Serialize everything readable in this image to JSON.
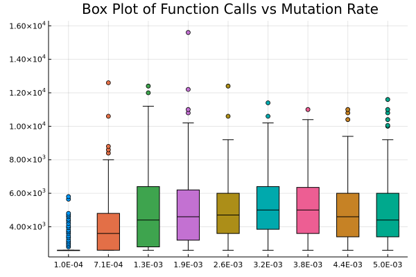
{
  "chart_data": {
    "type": "box",
    "title": "Box Plot of Function Calls vs Mutation Rate",
    "xlabel": "",
    "ylabel": "",
    "ylim": [
      2200,
      16300
    ],
    "grid": true,
    "legend": "none",
    "y_ticks": [
      {
        "value": 4000,
        "mantissa": "4.00",
        "exponent": "3"
      },
      {
        "value": 6000,
        "mantissa": "6.00",
        "exponent": "3"
      },
      {
        "value": 8000,
        "mantissa": "8.00",
        "exponent": "3"
      },
      {
        "value": 10000,
        "mantissa": "1.00",
        "exponent": "4"
      },
      {
        "value": 12000,
        "mantissa": "1.20",
        "exponent": "4"
      },
      {
        "value": 14000,
        "mantissa": "1.40",
        "exponent": "4"
      },
      {
        "value": 16000,
        "mantissa": "1.60",
        "exponent": "4"
      }
    ],
    "categories": [
      "1.0E-04",
      "7.1E-04",
      "1.3E-03",
      "1.9E-03",
      "2.6E-03",
      "3.2E-03",
      "3.8E-03",
      "4.4E-03",
      "5.0E-03"
    ],
    "boxes": [
      {
        "category": "1.0E-04",
        "color": "#009AFA",
        "whisker_low": 2600,
        "q1": 2600,
        "median": 2600,
        "q3": 2600,
        "whisker_high": 2600,
        "outliers": [
          2800,
          2900,
          3000,
          3100,
          3200,
          3350,
          3450,
          3600,
          3700,
          3800,
          3950,
          4050,
          4200,
          4350,
          4450,
          4600,
          4700,
          4800,
          5650,
          5800
        ]
      },
      {
        "category": "7.1E-04",
        "color": "#E36F47",
        "whisker_low": 2600,
        "q1": 2600,
        "median": 3600,
        "q3": 4800,
        "whisker_high": 8000,
        "outliers": [
          8400,
          8600,
          8800,
          10600,
          12600
        ]
      },
      {
        "category": "1.3E-03",
        "color": "#3EA44E",
        "whisker_low": 2600,
        "q1": 2800,
        "median": 4400,
        "q3": 6400,
        "whisker_high": 11200,
        "outliers": [
          12000,
          12400
        ]
      },
      {
        "category": "1.9E-03",
        "color": "#C371D2",
        "whisker_low": 2600,
        "q1": 3200,
        "median": 4600,
        "q3": 6200,
        "whisker_high": 10200,
        "outliers": [
          10800,
          11000,
          12200,
          15600
        ]
      },
      {
        "category": "2.6E-03",
        "color": "#AC8E18",
        "whisker_low": 2600,
        "q1": 3600,
        "median": 4700,
        "q3": 6000,
        "whisker_high": 9200,
        "outliers": [
          10600,
          12400
        ]
      },
      {
        "category": "3.2E-03",
        "color": "#00A9AD",
        "whisker_low": 2600,
        "q1": 3850,
        "median": 5000,
        "q3": 6400,
        "whisker_high": 10200,
        "outliers": [
          10600,
          11400
        ]
      },
      {
        "category": "3.8E-03",
        "color": "#ED5E93",
        "whisker_low": 2600,
        "q1": 3600,
        "median": 5000,
        "q3": 6350,
        "whisker_high": 10400,
        "outliers": [
          11000
        ]
      },
      {
        "category": "4.4E-03",
        "color": "#C68225",
        "whisker_low": 2600,
        "q1": 3400,
        "median": 4600,
        "q3": 6000,
        "whisker_high": 9400,
        "outliers": [
          10400,
          10800,
          11000
        ]
      },
      {
        "category": "5.0E-03",
        "color": "#00A98D",
        "whisker_low": 2600,
        "q1": 3400,
        "median": 4400,
        "q3": 6000,
        "whisker_high": 9200,
        "outliers": [
          10000,
          10050,
          10400,
          10800,
          11000,
          11600
        ]
      }
    ]
  }
}
